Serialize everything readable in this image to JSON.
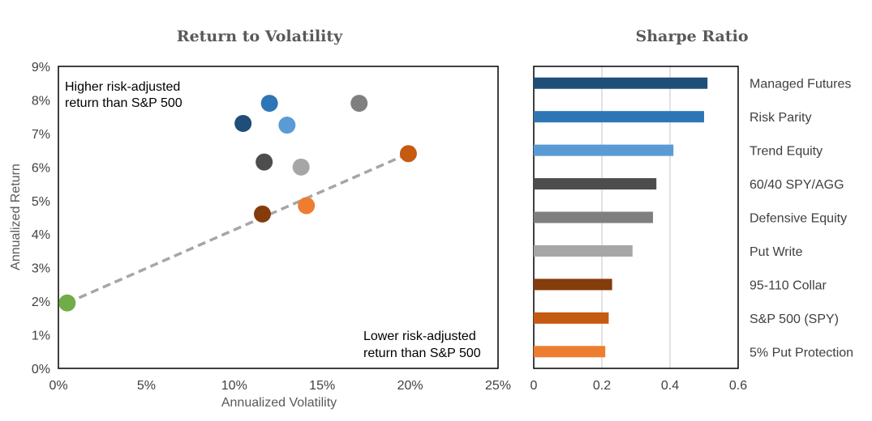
{
  "chart_data": [
    {
      "type": "scatter",
      "title": "Return to Volatility",
      "xlabel": "Annualized Volatility",
      "ylabel": "Annualized Return",
      "xlim": [
        0,
        25
      ],
      "ylim": [
        0,
        9
      ],
      "x_ticks": [
        "0%",
        "5%",
        "10%",
        "15%",
        "20%",
        "25%"
      ],
      "y_ticks": [
        "0%",
        "1%",
        "2%",
        "3%",
        "4%",
        "5%",
        "6%",
        "7%",
        "8%",
        "9%"
      ],
      "grid": false,
      "points": [
        {
          "x": 10.5,
          "y": 7.3,
          "color": "#1F4E79"
        },
        {
          "x": 12.0,
          "y": 7.9,
          "color": "#2E75B6"
        },
        {
          "x": 13.0,
          "y": 7.25,
          "color": "#5B9BD5"
        },
        {
          "x": 17.1,
          "y": 7.9,
          "color": "#7F7F7F"
        },
        {
          "x": 11.7,
          "y": 6.15,
          "color": "#4D4D4D"
        },
        {
          "x": 13.8,
          "y": 6.0,
          "color": "#A6A6A6"
        },
        {
          "x": 19.9,
          "y": 6.4,
          "color": "#C55A11"
        },
        {
          "x": 11.6,
          "y": 4.6,
          "color": "#843C0C"
        },
        {
          "x": 14.1,
          "y": 4.85,
          "color": "#ED7D31"
        },
        {
          "x": 0.5,
          "y": 1.95,
          "color": "#70AD47"
        }
      ],
      "reference_line": {
        "from": [
          0.5,
          1.95
        ],
        "to": [
          19.9,
          6.4
        ],
        "color": "#A6A6A6",
        "style": "dashed"
      },
      "annotations": {
        "upper": [
          "Higher risk-adjusted",
          "return than S&P 500"
        ],
        "lower": [
          "Lower risk-adjusted",
          "return than S&P 500"
        ]
      }
    },
    {
      "type": "bar",
      "orientation": "horizontal",
      "title": "Sharpe Ratio",
      "xlim": [
        0,
        0.6
      ],
      "x_ticks": [
        "0",
        "0.2",
        "0.4",
        "0.6"
      ],
      "grid": true,
      "categories": [
        "Managed Futures",
        "Risk Parity",
        "Trend Equity",
        "60/40 SPY/AGG",
        "Defensive Equity",
        "Put Write",
        "95-110 Collar",
        "S&P 500 (SPY)",
        "5% Put Protection"
      ],
      "values": [
        0.51,
        0.5,
        0.41,
        0.36,
        0.35,
        0.29,
        0.23,
        0.22,
        0.21
      ],
      "colors": [
        "#1F4E79",
        "#2E75B6",
        "#5B9BD5",
        "#4D4D4D",
        "#7F7F7F",
        "#A6A6A6",
        "#843C0C",
        "#C55A11",
        "#ED7D31"
      ]
    }
  ]
}
